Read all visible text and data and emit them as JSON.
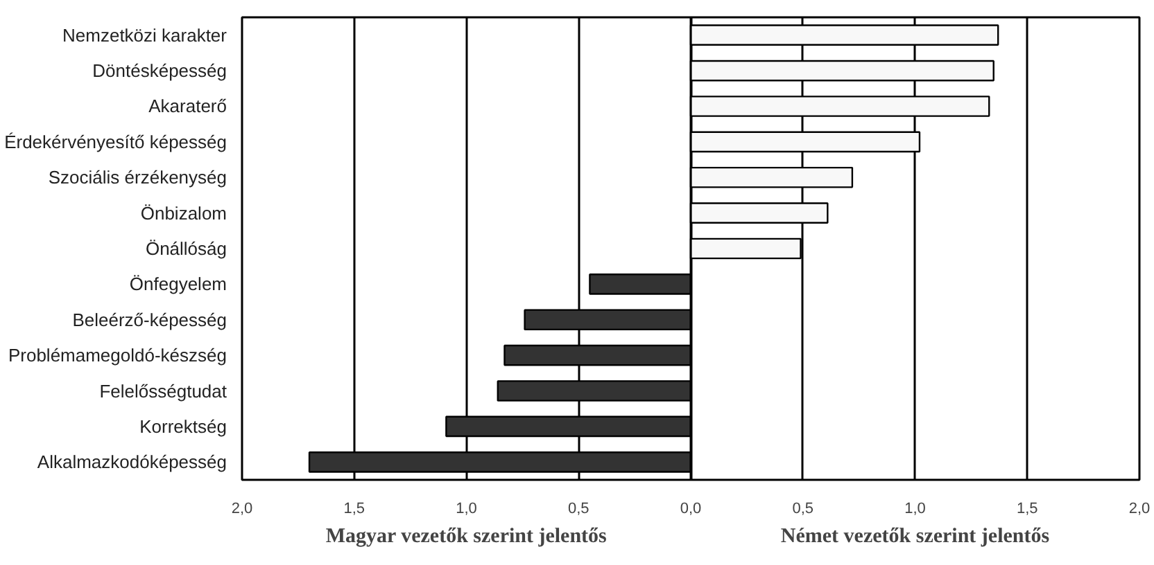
{
  "chart_data": {
    "type": "bar",
    "orientation": "horizontal",
    "categories": [
      "Nemzetközi karakter",
      "Döntésképesség",
      "Akaraterő",
      "Érdekérvényesítő képesség",
      "Szociális érzékenység",
      "Önbizalom",
      "Önállóság",
      "Önfegyelem",
      "Beleérző-képesség",
      "Problémamegoldó-készség",
      "Felelősségtudat",
      "Korrektség",
      "Alkalmazkodóképesség"
    ],
    "values": [
      1.37,
      1.35,
      1.33,
      1.02,
      0.72,
      0.61,
      0.49,
      -0.45,
      -0.74,
      -0.83,
      -0.86,
      -1.09,
      -1.7
    ],
    "colors": [
      "#f8f8f8",
      "#f8f8f8",
      "#f8f8f8",
      "#f8f8f8",
      "#f8f8f8",
      "#f8f8f8",
      "#f8f8f8",
      "#333333",
      "#333333",
      "#333333",
      "#333333",
      "#333333",
      "#333333"
    ],
    "xlim": [
      -2,
      2
    ],
    "xticks": [
      {
        "value": -2,
        "label": "2,0"
      },
      {
        "value": -1.5,
        "label": "1,5"
      },
      {
        "value": -1,
        "label": "1,0"
      },
      {
        "value": -0.5,
        "label": "0,5"
      },
      {
        "value": 0,
        "label": "0,0"
      },
      {
        "value": 0.5,
        "label": "0,5"
      },
      {
        "value": 1,
        "label": "1,0"
      },
      {
        "value": 1.5,
        "label": "1,5"
      },
      {
        "value": 2,
        "label": "2,0"
      }
    ],
    "grid": "x",
    "annotations": [
      "Magyar vezetők szerint jelentős",
      "Német vezetők szerint jelentős"
    ]
  }
}
